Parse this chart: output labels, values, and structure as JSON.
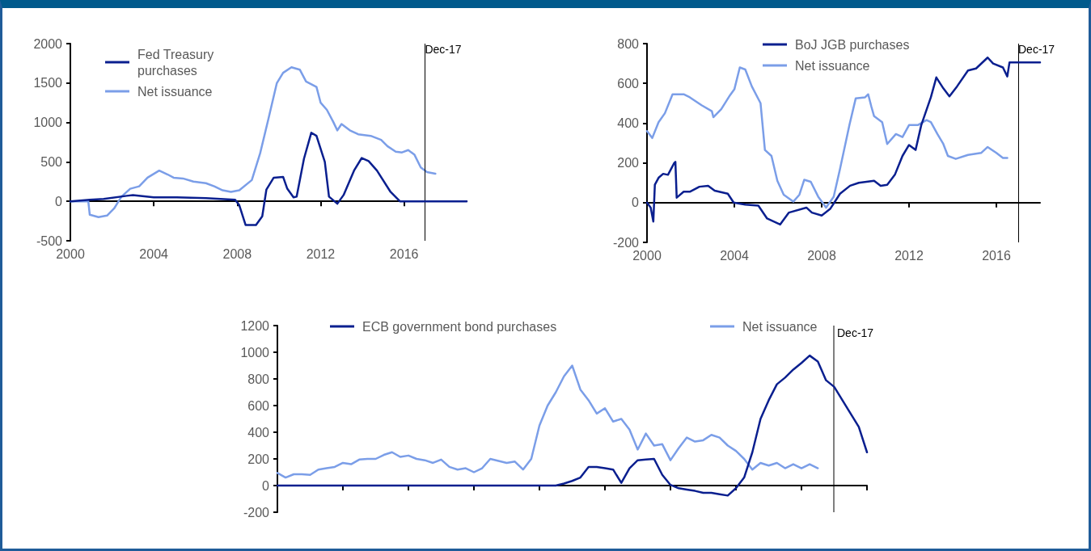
{
  "chart_data": [
    {
      "type": "line",
      "xlim": [
        2000,
        2019
      ],
      "xticks": [
        2000,
        2004,
        2008,
        2012,
        2016
      ],
      "ylim": [
        -500,
        2000
      ],
      "yticks": [
        -500,
        0,
        500,
        1000,
        1500,
        2000
      ],
      "legend": "top left",
      "marker": "none",
      "ref_lines": [
        {
          "axis": "x",
          "value": 2017,
          "label": "Dec-17"
        }
      ],
      "series": [
        {
          "name": "Fed Treasury purchases",
          "color": "#0a1f8f",
          "x": [
            2000,
            2000.93,
            2001.6,
            2002.7,
            2003,
            2004,
            2005.1,
            2006.5,
            2007.9,
            2008.1,
            2008.4,
            2008.9,
            2009.2,
            2009.4,
            2009.75,
            2010.2,
            2010.4,
            2010.7,
            2010.85,
            2011.2,
            2011.55,
            2011.8,
            2012.2,
            2012.4,
            2012.8,
            2013.1,
            2013.6,
            2013.97,
            2014.3,
            2014.7,
            2015.35,
            2015.8,
            2017,
            2019
          ],
          "values": [
            0,
            20,
            30,
            70,
            80,
            50,
            50,
            40,
            20,
            -50,
            -300,
            -300,
            -190,
            150,
            300,
            310,
            160,
            50,
            60,
            540,
            870,
            830,
            500,
            60,
            -30,
            80,
            390,
            550,
            510,
            390,
            120,
            0,
            0,
            0
          ]
        },
        {
          "name": "Net issuance",
          "color": "#7b9ee8",
          "x": [
            2000,
            2000.86,
            2000.93,
            2001.35,
            2001.76,
            2002.1,
            2002.45,
            2002.87,
            2003.3,
            2003.7,
            2004.26,
            2004.67,
            2004.95,
            2005.4,
            2005.9,
            2006.5,
            2006.9,
            2007.3,
            2007.7,
            2008.1,
            2008.7,
            2009.1,
            2009.5,
            2009.9,
            2010.2,
            2010.6,
            2011,
            2011.3,
            2011.8,
            2012,
            2012.3,
            2012.6,
            2012.8,
            2013,
            2013.4,
            2013.8,
            2014.4,
            2014.9,
            2015.2,
            2015.6,
            2015.9,
            2016.2,
            2016.5,
            2016.8,
            2017.1,
            2017.5
          ],
          "values": [
            0,
            0,
            -170,
            -200,
            -180,
            -90,
            60,
            160,
            190,
            300,
            390,
            340,
            300,
            290,
            250,
            230,
            190,
            140,
            120,
            140,
            270,
            610,
            1050,
            1500,
            1630,
            1700,
            1670,
            1520,
            1450,
            1250,
            1160,
            1010,
            900,
            980,
            900,
            850,
            830,
            780,
            700,
            630,
            620,
            650,
            590,
            430,
            370,
            350
          ]
        }
      ]
    },
    {
      "type": "line",
      "xlim": [
        2000,
        2018
      ],
      "xticks": [
        2000,
        2004,
        2008,
        2012,
        2016
      ],
      "ylim": [
        -200,
        800
      ],
      "yticks": [
        -200,
        0,
        200,
        400,
        600,
        800
      ],
      "legend": "top",
      "marker": "none",
      "ref_lines": [
        {
          "axis": "x",
          "value": 2017,
          "label": "Dec-17"
        }
      ],
      "series": [
        {
          "name": "BoJ JGB purchases",
          "color": "#0a1f8f",
          "x": [
            2000,
            2000.17,
            2000.29,
            2000.36,
            2000.53,
            2000.74,
            2000.96,
            2001.25,
            2001.3,
            2001.36,
            2001.68,
            2001.96,
            2002.4,
            2002.8,
            2003.1,
            2003.7,
            2003.97,
            2004.5,
            2005.1,
            2005.5,
            2006.1,
            2006.5,
            2007.3,
            2007.55,
            2008,
            2008.4,
            2008.84,
            2009.3,
            2009.7,
            2010.4,
            2010.7,
            2011,
            2011.35,
            2011.7,
            2012,
            2012.3,
            2012.56,
            2013,
            2013.25,
            2013.57,
            2013.85,
            2014.2,
            2014.7,
            2015.07,
            2015.6,
            2015.85,
            2016.3,
            2016.5,
            2016.6,
            2018
          ],
          "values": [
            0,
            -25,
            -95,
            90,
            125,
            145,
            140,
            200,
            205,
            25,
            55,
            55,
            80,
            85,
            60,
            45,
            0,
            -10,
            -15,
            -80,
            -110,
            -50,
            -25,
            -50,
            -65,
            -30,
            45,
            85,
            100,
            110,
            85,
            90,
            140,
            235,
            290,
            265,
            390,
            530,
            630,
            575,
            535,
            585,
            665,
            675,
            730,
            700,
            680,
            635,
            705,
            705
          ]
        },
        {
          "name": "Net issuance",
          "color": "#7b9ee8",
          "x": [
            2000,
            2000.24,
            2000.53,
            2000.82,
            2001.17,
            2001.68,
            2001.96,
            2002.5,
            2002.97,
            2003.04,
            2003.4,
            2003.8,
            2004,
            2004.25,
            2004.5,
            2004.8,
            2005.2,
            2005.4,
            2005.7,
            2005.97,
            2006.26,
            2006.7,
            2006.98,
            2007.2,
            2007.5,
            2007.84,
            2008.2,
            2008.55,
            2008.84,
            2009.27,
            2009.56,
            2009.99,
            2010.13,
            2010.27,
            2010.4,
            2010.77,
            2011,
            2011.4,
            2011.7,
            2012,
            2012.4,
            2012.8,
            2013,
            2013.3,
            2013.57,
            2013.78,
            2014.14,
            2014.7,
            2015.3,
            2015.6,
            2016,
            2016.3,
            2016.5
          ],
          "values": [
            360,
            325,
            405,
            450,
            545,
            545,
            530,
            490,
            460,
            430,
            470,
            540,
            570,
            680,
            670,
            585,
            500,
            265,
            235,
            110,
            40,
            5,
            40,
            115,
            105,
            30,
            -25,
            30,
            170,
            390,
            525,
            530,
            545,
            485,
            435,
            405,
            295,
            345,
            330,
            390,
            390,
            415,
            405,
            345,
            295,
            235,
            220,
            240,
            250,
            280,
            250,
            225,
            225
          ]
        }
      ]
    },
    {
      "type": "line",
      "categories": [
        null,
        null,
        null,
        null,
        null,
        null,
        null,
        null,
        null,
        null,
        null,
        null,
        null,
        null,
        null,
        null,
        null,
        null,
        null,
        null,
        null,
        null,
        null,
        null,
        null,
        null,
        null,
        null,
        null,
        null,
        null,
        null,
        null,
        null,
        null,
        null,
        null,
        null,
        null,
        null,
        null,
        null,
        null,
        null,
        null,
        null,
        null,
        null,
        null,
        null,
        null,
        null,
        null,
        null,
        null,
        null,
        null,
        null,
        null,
        null,
        null,
        null,
        null,
        null,
        null,
        null,
        null,
        null,
        null,
        null,
        null,
        null,
        null
      ],
      "ylim": [
        -200,
        1200
      ],
      "yticks": [
        -200,
        0,
        200,
        400,
        600,
        800,
        1000,
        1200
      ],
      "legend": "top",
      "marker": "none",
      "tick_labels": "y",
      "annotations": [
        "Dec-17"
      ],
      "series": [
        {
          "name": "ECB government bond purchases",
          "color": "#0a1f8f",
          "values": [
            0,
            0,
            0,
            0,
            0,
            0,
            0,
            0,
            0,
            0,
            0,
            0,
            0,
            0,
            0,
            0,
            0,
            0,
            0,
            0,
            0,
            0,
            0,
            0,
            0,
            0,
            0,
            0,
            0,
            0,
            0,
            0,
            0,
            0,
            0,
            15,
            35,
            60,
            140,
            140,
            130,
            120,
            20,
            130,
            190,
            195,
            200,
            80,
            5,
            -20,
            -30,
            -40,
            -55,
            -55,
            -65,
            -75,
            -20,
            60,
            250,
            500,
            640,
            760,
            810,
            870,
            920,
            975,
            930,
            790,
            740,
            640,
            540,
            440,
            250
          ]
        },
        {
          "name": "Net issuance",
          "color": "#7b9ee8",
          "values": [
            95,
            60,
            85,
            85,
            80,
            120,
            130,
            140,
            170,
            160,
            195,
            200,
            200,
            230,
            250,
            215,
            225,
            200,
            190,
            170,
            195,
            140,
            120,
            130,
            100,
            130,
            200,
            185,
            170,
            180,
            120,
            200,
            450,
            600,
            700,
            820,
            900,
            720,
            640,
            540,
            580,
            480,
            500,
            420,
            270,
            390,
            300,
            310,
            190,
            280,
            360,
            330,
            340,
            380,
            360,
            300,
            260,
            200,
            120,
            170,
            150,
            170,
            130,
            160,
            130,
            160,
            130,
            null,
            null,
            null,
            null,
            null,
            null
          ]
        }
      ]
    }
  ]
}
